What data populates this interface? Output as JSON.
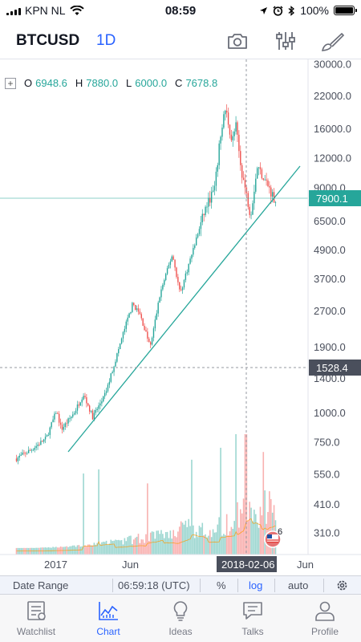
{
  "status_bar": {
    "carrier": "KPN NL",
    "time": "08:59",
    "battery": "100%",
    "battery_level": 1.0
  },
  "header": {
    "symbol": "BTCUSD",
    "interval": "1D",
    "icons": [
      "camera-icon",
      "indicators-icon",
      "drawing-brush-icon"
    ]
  },
  "ohlc": {
    "open_label": "O",
    "open": "6948.6",
    "high_label": "H",
    "high": "7880.0",
    "low_label": "L",
    "low": "6000.0",
    "close_label": "C",
    "close": "7678.8"
  },
  "price_badges": {
    "last_price": "7900.1",
    "crosshair_price": "1528.4",
    "crosshair_date": "2018-02-06"
  },
  "event_badge": {
    "count": "6"
  },
  "toolbar": {
    "date_range": "Date Range",
    "time": "06:59:18 (UTC)",
    "percent": "%",
    "log": "log",
    "auto": "auto"
  },
  "tabs": [
    {
      "label": "Watchlist",
      "icon": "watchlist-icon"
    },
    {
      "label": "Chart",
      "icon": "chart-icon"
    },
    {
      "label": "Ideas",
      "icon": "lightbulb-icon"
    },
    {
      "label": "Talks",
      "icon": "chat-icon"
    },
    {
      "label": "Profile",
      "icon": "profile-icon"
    }
  ],
  "colors": {
    "accent": "#2962ff",
    "up": "#26a69a",
    "down": "#ef5350"
  },
  "chart_data": {
    "type": "candlestick",
    "scale": "log",
    "y_ticks": [
      "30000.0",
      "22000.0",
      "16000.0",
      "12000.0",
      "9000.0",
      "6500.0",
      "4900.0",
      "3700.0",
      "2700.0",
      "1900.0",
      "1400.0",
      "1000.0",
      "750.0",
      "550.0",
      "410.0",
      "310.0"
    ],
    "x_ticks": [
      "2017",
      "Jun"
    ],
    "x_tick_future": "Jun",
    "close_path": [
      {
        "x": "2016-10-15",
        "y": 640
      },
      {
        "x": "2016-11-15",
        "y": 700
      },
      {
        "x": "2016-12-15",
        "y": 780
      },
      {
        "x": "2017-01-05",
        "y": 1020
      },
      {
        "x": "2017-01-15",
        "y": 850
      },
      {
        "x": "2017-02-10",
        "y": 1000
      },
      {
        "x": "2017-03-01",
        "y": 1200
      },
      {
        "x": "2017-03-20",
        "y": 960
      },
      {
        "x": "2017-04-15",
        "y": 1200
      },
      {
        "x": "2017-05-10",
        "y": 1800
      },
      {
        "x": "2017-05-25",
        "y": 2300
      },
      {
        "x": "2017-06-10",
        "y": 2900
      },
      {
        "x": "2017-06-25",
        "y": 2600
      },
      {
        "x": "2017-07-16",
        "y": 1900
      },
      {
        "x": "2017-08-05",
        "y": 3200
      },
      {
        "x": "2017-08-30",
        "y": 4700
      },
      {
        "x": "2017-09-15",
        "y": 3200
      },
      {
        "x": "2017-10-10",
        "y": 4800
      },
      {
        "x": "2017-11-05",
        "y": 7300
      },
      {
        "x": "2017-11-25",
        "y": 9000
      },
      {
        "x": "2017-12-08",
        "y": 16000
      },
      {
        "x": "2017-12-17",
        "y": 19500
      },
      {
        "x": "2017-12-30",
        "y": 14000
      },
      {
        "x": "2018-01-07",
        "y": 16500
      },
      {
        "x": "2018-01-17",
        "y": 11000
      },
      {
        "x": "2018-02-06",
        "y": 6900
      },
      {
        "x": "2018-02-20",
        "y": 11100
      },
      {
        "x": "2018-03-10",
        "y": 9500
      },
      {
        "x": "2018-03-25",
        "y": 8200
      },
      {
        "x": "2018-04-01",
        "y": 7679
      }
    ],
    "trendline": {
      "from": {
        "x": "2017-01-20",
        "y": 600
      },
      "to": {
        "x": "2018-04-25",
        "y": 11000
      }
    },
    "volume": "relative bars along bottom, peak near 2017-12 and 2018-02"
  }
}
